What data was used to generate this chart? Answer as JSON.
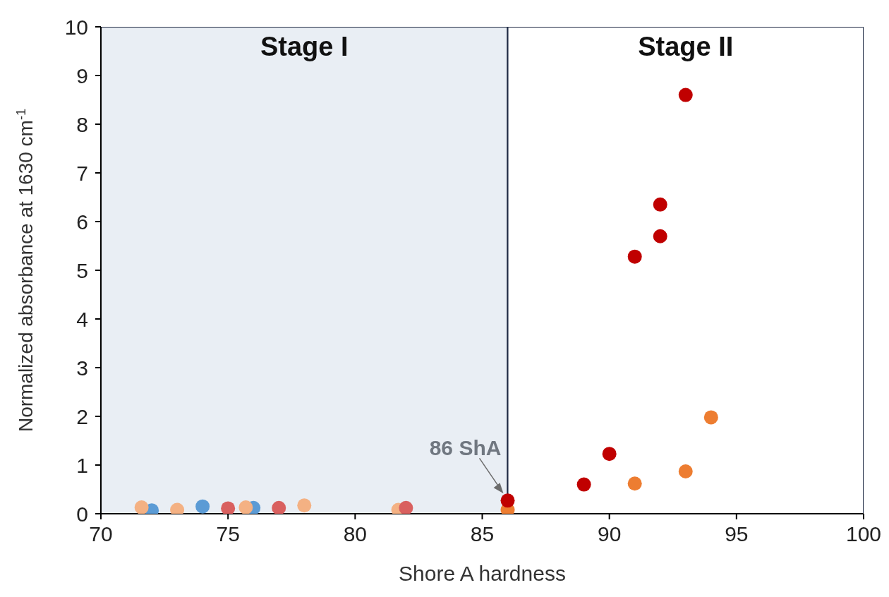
{
  "chart_data": {
    "type": "scatter",
    "xlabel": "Shore A hardness",
    "ylabel": "Normalized absorbance at 1630 cm$^{-1}$",
    "xlim": [
      70,
      100
    ],
    "xticks": [
      70,
      75,
      80,
      85,
      90,
      95,
      100
    ],
    "ylim": [
      0,
      10
    ],
    "yticks": [
      0,
      1,
      2,
      3,
      4,
      5,
      6,
      7,
      8,
      9,
      10
    ],
    "grid": false,
    "legend": false,
    "marker": "circle",
    "series": [
      {
        "color": "#5b9bd5",
        "x": [
          72,
          74,
          76
        ],
        "values": [
          0.07,
          0.15,
          0.12
        ]
      },
      {
        "color": "#f4b183",
        "x": [
          71.6,
          73,
          75.7,
          78,
          81.7
        ],
        "values": [
          0.13,
          0.08,
          0.13,
          0.17,
          0.08
        ]
      },
      {
        "color": "#d9605f",
        "x": [
          75,
          77,
          82
        ],
        "values": [
          0.11,
          0.12,
          0.12
        ]
      },
      {
        "color": "#ed7d31",
        "x": [
          86,
          91,
          93,
          94
        ],
        "values": [
          0.08,
          0.62,
          0.87,
          1.98
        ]
      },
      {
        "color": "#c00000",
        "x": [
          86,
          89,
          90,
          91,
          92,
          92,
          93
        ],
        "values": [
          0.27,
          0.6,
          1.23,
          5.28,
          5.7,
          6.35,
          8.6
        ]
      }
    ],
    "bands": [
      {
        "axis": "x",
        "from": 70,
        "to": 86,
        "label": "Stage I",
        "color": "#e9eef4"
      },
      {
        "axis": "x",
        "from": 86,
        "to": 100,
        "label": "Stage II",
        "color": "#ffffff"
      }
    ],
    "annotations": [
      {
        "text": "86 ShA",
        "x": 86,
        "y": 0.27
      }
    ]
  }
}
